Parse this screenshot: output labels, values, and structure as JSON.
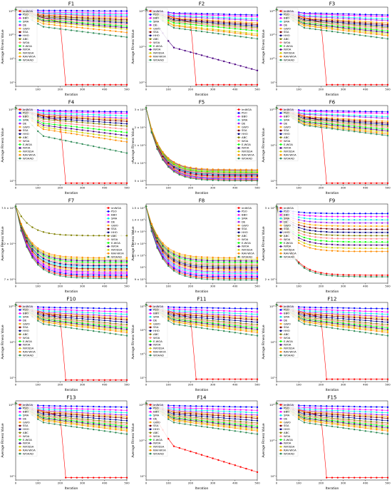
{
  "algorithms": [
    "imWOA",
    "PSO",
    "BBO",
    "SMA",
    "DE",
    "GWO",
    "SSA",
    "HHO",
    "ABC",
    "WOA",
    "E-WOA",
    "IWOA",
    "IWOSSA",
    "RAV-WOA",
    "WOAAD"
  ],
  "colors": [
    "#ff0000",
    "#0000ff",
    "#ff00ff",
    "#00e5e5",
    "#a020f0",
    "#ffa500",
    "#800000",
    "#000080",
    "#808000",
    "#ff7f7f",
    "#00ff00",
    "#4b0082",
    "#cccc00",
    "#ff8c00",
    "#2e8b57"
  ],
  "xlabel": "Iteration",
  "ylabel": "Average Fitness Value",
  "chart_data": [
    {
      "type": "line",
      "title": "F1",
      "xlabel": "Iteration",
      "ylabel": "Average Fitness Value",
      "scale": "log",
      "x_ticks": [
        0,
        100,
        200,
        300,
        400,
        500
      ],
      "y_ticks": [
        "10⁰",
        "10⁵",
        "10¹⁰",
        "10¹⁵"
      ],
      "legend": "top-left",
      "drop_x": 210,
      "drop_series": "imWOA",
      "series_levels": [
        0.02,
        0.95,
        0.92,
        0.9,
        0.88,
        0.86,
        0.84,
        0.8,
        0.82,
        0.78,
        0.76,
        0.74,
        0.72,
        0.68,
        0.62
      ]
    },
    {
      "type": "line",
      "title": "F2",
      "xlabel": "Iteration",
      "ylabel": "Average Fitness Value",
      "scale": "log",
      "x_ticks": [
        0,
        100,
        200,
        300,
        400,
        500
      ],
      "y_ticks": [
        "10¹⁰",
        "10¹⁵",
        "10²⁰"
      ],
      "legend": "top-left",
      "drop_x": 210,
      "drop_series": "imWOA",
      "series_levels": [
        0.02,
        0.9,
        0.88,
        0.85,
        0.83,
        0.8,
        0.78,
        0.76,
        0.74,
        0.72,
        0.7,
        0.2,
        0.66,
        0.64,
        0.6
      ]
    },
    {
      "type": "line",
      "title": "F3",
      "xlabel": "Iteration",
      "ylabel": "Average Fitness Value",
      "scale": "log",
      "x_ticks": [
        0,
        100,
        200,
        300,
        400,
        500
      ],
      "y_ticks": [
        "10⁰",
        "10¹⁰",
        "10²⁰",
        "10³⁰"
      ],
      "legend": "top-left",
      "drop_x": 210,
      "drop_series": "imWOA",
      "series_levels": [
        0.02,
        0.9,
        0.88,
        0.85,
        0.83,
        0.8,
        0.78,
        0.76,
        0.74,
        0.72,
        0.7,
        0.68,
        0.66,
        0.64,
        0.6
      ]
    },
    {
      "type": "line",
      "title": "F4",
      "xlabel": "Iteration",
      "ylabel": "Average Fitness Value",
      "scale": "log",
      "x_ticks": [
        0,
        100,
        200,
        300,
        400,
        500
      ],
      "y_ticks": [
        "10⁰",
        "10¹⁰"
      ],
      "legend": "top-left",
      "drop_x": 210,
      "drop_series": "imWOA",
      "series_levels": [
        0.02,
        0.92,
        0.9,
        0.87,
        0.84,
        0.82,
        0.8,
        0.77,
        0.74,
        0.7,
        0.66,
        0.62,
        0.58,
        0.54,
        0.4
      ]
    },
    {
      "type": "line",
      "title": "F5",
      "xlabel": "Iteration",
      "ylabel": "Average Fitness Value",
      "scale": "linear",
      "x_ticks": [
        0,
        100,
        200,
        300,
        400,
        500
      ],
      "y_ticks": [
        "5 × 10¹",
        "7.5 × 10¹",
        "1 × 10²",
        "2 × 10²",
        "3 × 10²"
      ],
      "legend": "top-right",
      "drop_x": null,
      "drop_series": null,
      "series_levels": [
        0.06,
        0.08,
        0.1,
        0.12,
        0.07,
        0.09,
        0.11,
        0.13,
        0.15,
        0.14,
        0.16,
        0.18,
        0.17,
        0.19,
        0.05
      ]
    },
    {
      "type": "line",
      "title": "F6",
      "xlabel": "Iteration",
      "ylabel": "Average Fitness Value",
      "scale": "log",
      "x_ticks": [
        0,
        100,
        200,
        300,
        400,
        500
      ],
      "y_ticks": [
        "10¹",
        "10⁵",
        "10¹⁰"
      ],
      "legend": "top-left",
      "drop_x": 210,
      "drop_series": "imWOA",
      "series_levels": [
        0.02,
        0.92,
        0.9,
        0.86,
        0.84,
        0.8,
        0.78,
        0.76,
        0.74,
        0.72,
        0.7,
        0.68,
        0.66,
        0.64,
        0.62
      ]
    },
    {
      "type": "line",
      "title": "F7",
      "xlabel": "Iteration",
      "ylabel": "Average Fitness Value",
      "scale": "linear",
      "x_ticks": [
        0,
        100,
        200,
        300,
        400,
        500
      ],
      "y_ticks": [
        "7 × 10¹",
        "7.2 × 10¹",
        "7.5 × 10¹"
      ],
      "legend": "top-right",
      "drop_x": null,
      "drop_series": null,
      "series_levels": [
        0.08,
        0.1,
        0.12,
        0.2,
        0.14,
        0.16,
        0.18,
        0.22,
        0.6,
        0.24,
        0.26,
        0.28,
        0.3,
        0.32,
        0.06
      ]
    },
    {
      "type": "line",
      "title": "F8",
      "xlabel": "Iteration",
      "ylabel": "Average Fitness Value",
      "scale": "linear",
      "x_ticks": [
        0,
        100,
        200,
        300,
        400,
        500
      ],
      "y_ticks": [
        "9 × 10¹",
        "10²",
        "1.1 × 10²",
        "1.2 × 10²",
        "1.3 × 10²",
        "1.4 × 10²",
        "1.5 × 10²"
      ],
      "legend": "top-right",
      "drop_x": null,
      "drop_series": null,
      "series_levels": [
        0.06,
        0.08,
        0.1,
        0.12,
        0.14,
        0.16,
        0.18,
        0.2,
        0.22,
        0.24,
        0.26,
        0.28,
        0.3,
        0.32,
        0.04
      ]
    },
    {
      "type": "line",
      "title": "F9",
      "xlabel": "Iteration",
      "ylabel": "Average Fitness Value",
      "scale": "linear",
      "x_ticks": [
        0,
        100,
        200,
        300,
        400,
        500
      ],
      "y_ticks": [
        "2 × 10⁰",
        "3 × 10⁰"
      ],
      "legend": "top-left",
      "drop_x": null,
      "drop_series": null,
      "series_levels": [
        0.1,
        0.88,
        0.84,
        0.8,
        0.76,
        0.72,
        0.68,
        0.64,
        0.6,
        0.56,
        0.52,
        0.48,
        0.44,
        0.4,
        0.08
      ]
    },
    {
      "type": "line",
      "title": "F10",
      "xlabel": "Iteration",
      "ylabel": "Average Fitness Value",
      "scale": "log",
      "x_ticks": [
        0,
        100,
        200,
        300,
        400,
        500
      ],
      "y_ticks": [
        "10⁰",
        "10⁵",
        "10¹⁰"
      ],
      "legend": "top-left",
      "drop_x": 210,
      "drop_series": "imWOA",
      "series_levels": [
        0.02,
        0.92,
        0.88,
        0.85,
        0.82,
        0.8,
        0.78,
        0.75,
        0.72,
        0.7,
        0.68,
        0.66,
        0.64,
        0.62,
        0.58
      ]
    },
    {
      "type": "line",
      "title": "F11",
      "xlabel": "Iteration",
      "ylabel": "Average Fitness Value",
      "scale": "log",
      "x_ticks": [
        0,
        100,
        200,
        300,
        400,
        500
      ],
      "y_ticks": [
        "10⁰",
        "10²",
        "10⁴",
        "10⁶"
      ],
      "legend": "top-left",
      "drop_x": 210,
      "drop_series": "imWOA",
      "series_levels": [
        0.03,
        0.92,
        0.88,
        0.85,
        0.82,
        0.8,
        0.78,
        0.75,
        0.72,
        0.7,
        0.68,
        0.66,
        0.64,
        0.62,
        0.58
      ]
    },
    {
      "type": "line",
      "title": "F12",
      "xlabel": "Iteration",
      "ylabel": "Average Fitness Value",
      "scale": "log",
      "x_ticks": [
        0,
        100,
        200,
        300,
        400,
        500
      ],
      "y_ticks": [
        "10⁰",
        "10⁵",
        "10¹⁰"
      ],
      "legend": "top-left",
      "drop_x": 210,
      "drop_series": "imWOA",
      "series_levels": [
        0.03,
        0.92,
        0.88,
        0.85,
        0.82,
        0.8,
        0.78,
        0.75,
        0.72,
        0.7,
        0.68,
        0.66,
        0.64,
        0.62,
        0.58
      ]
    },
    {
      "type": "line",
      "title": "F13",
      "xlabel": "Iteration",
      "ylabel": "Average Fitness Value",
      "scale": "log",
      "x_ticks": [
        0,
        100,
        200,
        300,
        400,
        500
      ],
      "y_ticks": [
        "10⁰",
        "10¹⁰"
      ],
      "legend": "top-left",
      "drop_x": 210,
      "drop_series": "imWOA",
      "series_levels": [
        0.03,
        0.92,
        0.88,
        0.85,
        0.82,
        0.8,
        0.78,
        0.75,
        0.72,
        0.7,
        0.68,
        0.66,
        0.64,
        0.62,
        0.58
      ]
    },
    {
      "type": "line",
      "title": "F14",
      "xlabel": "Iteration",
      "ylabel": "Average Fitness Value",
      "scale": "log",
      "x_ticks": [
        0,
        100,
        200,
        300,
        400,
        500
      ],
      "y_ticks": [
        "10⁰",
        "10¹⁰",
        "10²⁰"
      ],
      "legend": "top-left",
      "drop_x": null,
      "drop_series": null,
      "series_levels": [
        0.1,
        0.92,
        0.88,
        0.85,
        0.82,
        0.8,
        0.78,
        0.75,
        0.72,
        0.7,
        0.68,
        0.66,
        0.64,
        0.62,
        0.58
      ]
    },
    {
      "type": "line",
      "title": "F15",
      "xlabel": "Iteration",
      "ylabel": "Average Fitness Value",
      "scale": "log",
      "x_ticks": [
        0,
        100,
        200,
        300,
        400,
        500
      ],
      "y_ticks": [
        "10⁰",
        "10¹⁰",
        "10²⁰"
      ],
      "legend": "top-left",
      "drop_x": 210,
      "drop_series": "imWOA",
      "series_levels": [
        0.03,
        0.92,
        0.88,
        0.85,
        0.82,
        0.8,
        0.78,
        0.75,
        0.72,
        0.7,
        0.68,
        0.66,
        0.64,
        0.62,
        0.58
      ]
    }
  ]
}
